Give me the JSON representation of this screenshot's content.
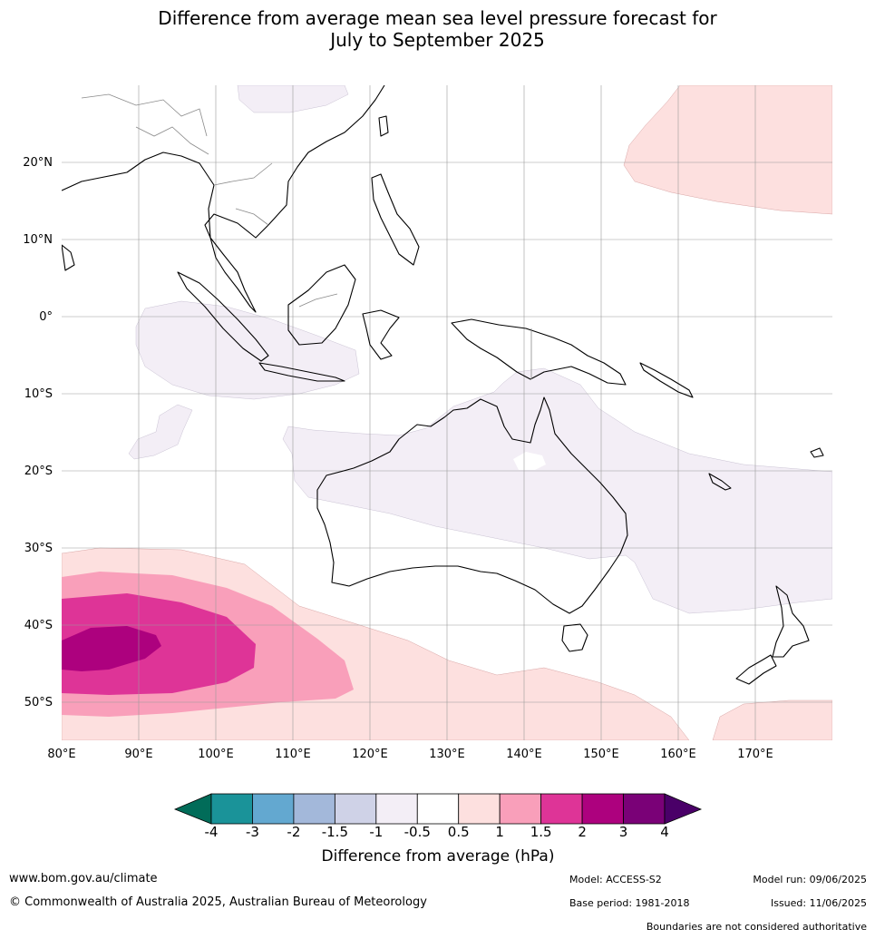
{
  "title_line1": "Difference from average mean sea level pressure forecast for",
  "title_line2": "July to September 2025",
  "lat_labels": [
    "20°N",
    "10°N",
    "0°",
    "10°S",
    "20°S",
    "30°S",
    "40°S",
    "50°S"
  ],
  "lon_labels": [
    "80°E",
    "90°E",
    "100°E",
    "110°E",
    "120°E",
    "130°E",
    "140°E",
    "150°E",
    "160°E",
    "170°E"
  ],
  "colorbar": {
    "title": "Difference from average (hPa)",
    "ticks": [
      "-4",
      "-3",
      "-2",
      "-1.5",
      "-1",
      "-0.5",
      "0.5",
      "1",
      "1.5",
      "2",
      "3",
      "4"
    ],
    "colors": [
      "#1a9399",
      "#63a8d0",
      "#a3b8da",
      "#cfd2e7",
      "#f3eef6",
      "#ffffff",
      "#fde0df",
      "#f99fba",
      "#de3497",
      "#ad017e",
      "#7a0177"
    ],
    "under_color": "#016c59",
    "over_color": "#4a0068"
  },
  "footer": {
    "url": "www.bom.gov.au/climate",
    "copyright": "© Commonwealth of Australia 2025, Australian Bureau of Meteorology",
    "model": "Model: ACCESS-S2",
    "base_period": "Base period: 1981-2018",
    "model_run": "Model run: 09/06/2025",
    "issued": "Issued: 11/06/2025",
    "disclaimer": "Boundaries are not considered authoritative"
  }
}
